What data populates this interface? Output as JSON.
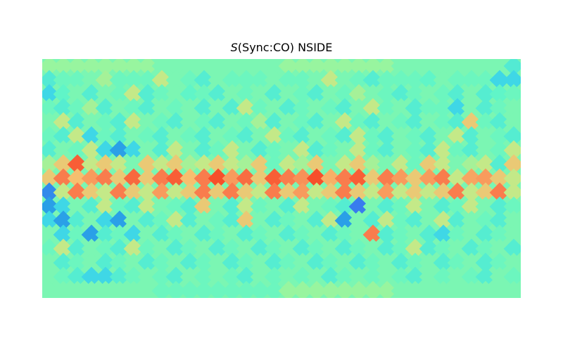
{
  "chart_data": {
    "type": "heatmap",
    "title": {
      "prefix": "S",
      "rest": "(Sync:CO) NSIDE"
    },
    "projection": "mollweide-like healpix map (rectangular/cartesian rendering)",
    "axes_visible": false,
    "colorbar": false,
    "colormap": "rainbow",
    "palette": [
      "#3d6ff0",
      "#27a7e6",
      "#3fd7e6",
      "#5ef5c9",
      "#8ff7a4",
      "#c6e887",
      "#f6bf6f",
      "#f97f4f",
      "#f7401f"
    ],
    "value_range": [
      0,
      1
    ],
    "grid": {
      "rows": 17,
      "cols": 34
    },
    "values": [
      [
        0.52,
        0.52,
        0.52,
        0.52,
        0.52,
        0.52,
        0.52,
        0.52,
        0.45,
        0.45,
        0.45,
        0.45,
        0.45,
        0.45,
        0.45,
        0.45,
        0.45,
        0.52,
        0.52,
        0.52,
        0.52,
        0.52,
        0.52,
        0.52,
        0.52,
        0.45,
        0.45,
        0.45,
        0.45,
        0.45,
        0.45,
        0.45,
        0.45,
        0.33
      ],
      [
        0.33,
        0.41,
        0.41,
        0.45,
        0.55,
        0.41,
        0.41,
        0.41,
        0.62,
        0.45,
        0.41,
        0.34,
        0.45,
        0.41,
        0.41,
        0.41,
        0.45,
        0.41,
        0.41,
        0.45,
        0.62,
        0.45,
        0.41,
        0.34,
        0.41,
        0.41,
        0.41,
        0.38,
        0.45,
        0.41,
        0.41,
        0.41,
        0.25,
        0.25
      ],
      [
        0.25,
        0.38,
        0.45,
        0.34,
        0.45,
        0.41,
        0.62,
        0.34,
        0.41,
        0.45,
        0.38,
        0.41,
        0.34,
        0.45,
        0.41,
        0.45,
        0.34,
        0.45,
        0.41,
        0.34,
        0.45,
        0.41,
        0.55,
        0.45,
        0.41,
        0.34,
        0.41,
        0.45,
        0.41,
        0.34,
        0.45,
        0.34,
        0.38,
        0.41
      ],
      [
        0.41,
        0.34,
        0.41,
        0.55,
        0.34,
        0.45,
        0.41,
        0.34,
        0.45,
        0.41,
        0.45,
        0.34,
        0.45,
        0.34,
        0.62,
        0.41,
        0.45,
        0.34,
        0.41,
        0.45,
        0.41,
        0.34,
        0.45,
        0.62,
        0.41,
        0.45,
        0.34,
        0.41,
        0.41,
        0.25,
        0.45,
        0.34,
        0.41,
        0.45
      ],
      [
        0.45,
        0.62,
        0.34,
        0.45,
        0.41,
        0.34,
        0.62,
        0.45,
        0.41,
        0.34,
        0.45,
        0.41,
        0.34,
        0.45,
        0.41,
        0.55,
        0.34,
        0.45,
        0.41,
        0.34,
        0.45,
        0.62,
        0.41,
        0.34,
        0.45,
        0.41,
        0.34,
        0.45,
        0.41,
        0.34,
        0.72,
        0.41,
        0.34,
        0.45
      ],
      [
        0.41,
        0.34,
        0.62,
        0.25,
        0.41,
        0.34,
        0.45,
        0.41,
        0.34,
        0.45,
        0.41,
        0.34,
        0.45,
        0.41,
        0.34,
        0.45,
        0.62,
        0.41,
        0.34,
        0.45,
        0.41,
        0.34,
        0.62,
        0.41,
        0.34,
        0.45,
        0.41,
        0.34,
        0.45,
        0.62,
        0.34,
        0.45,
        0.41,
        0.34
      ],
      [
        0.34,
        0.45,
        0.41,
        0.62,
        0.25,
        0.11,
        0.25,
        0.45,
        0.34,
        0.62,
        0.45,
        0.34,
        0.41,
        0.62,
        0.45,
        0.34,
        0.41,
        0.45,
        0.62,
        0.34,
        0.41,
        0.45,
        0.62,
        0.41,
        0.34,
        0.45,
        0.41,
        0.34,
        0.62,
        0.41,
        0.34,
        0.45,
        0.41,
        0.62
      ],
      [
        0.55,
        0.72,
        0.94,
        0.62,
        0.72,
        0.62,
        0.45,
        0.72,
        0.62,
        0.72,
        0.55,
        0.62,
        0.72,
        0.62,
        0.55,
        0.72,
        0.41,
        0.62,
        0.55,
        0.72,
        0.45,
        0.62,
        0.72,
        0.55,
        0.45,
        0.62,
        0.41,
        0.72,
        0.62,
        0.45,
        0.55,
        0.62,
        0.34,
        0.72
      ],
      [
        0.72,
        0.88,
        0.75,
        0.82,
        0.88,
        0.72,
        0.92,
        0.72,
        0.88,
        0.94,
        0.75,
        0.88,
        0.97,
        0.82,
        0.91,
        0.72,
        0.94,
        0.88,
        0.84,
        0.97,
        0.78,
        0.88,
        0.94,
        0.72,
        0.88,
        0.82,
        0.72,
        0.82,
        0.88,
        0.62,
        0.8,
        0.82,
        0.72,
        0.62
      ],
      [
        0.06,
        0.62,
        0.88,
        0.72,
        0.62,
        0.88,
        0.72,
        0.62,
        0.82,
        0.62,
        0.72,
        0.88,
        0.72,
        0.88,
        0.72,
        0.62,
        0.88,
        0.72,
        0.82,
        0.62,
        0.72,
        0.88,
        0.72,
        0.62,
        0.82,
        0.62,
        0.72,
        0.62,
        0.72,
        0.88,
        0.62,
        0.72,
        0.88,
        0.62
      ],
      [
        0.11,
        0.25,
        0.45,
        0.34,
        0.62,
        0.41,
        0.34,
        0.62,
        0.45,
        0.41,
        0.34,
        0.72,
        0.45,
        0.34,
        0.62,
        0.41,
        0.45,
        0.34,
        0.62,
        0.45,
        0.41,
        0.34,
        0.03,
        0.45,
        0.34,
        0.41,
        0.62,
        0.45,
        0.34,
        0.41,
        0.62,
        0.45,
        0.34,
        0.41
      ],
      [
        0.25,
        0.11,
        0.34,
        0.45,
        0.25,
        0.11,
        0.45,
        0.34,
        0.41,
        0.62,
        0.34,
        0.45,
        0.41,
        0.34,
        0.72,
        0.45,
        0.34,
        0.41,
        0.45,
        0.34,
        0.62,
        0.11,
        0.45,
        0.34,
        0.62,
        0.41,
        0.34,
        0.45,
        0.62,
        0.34,
        0.45,
        0.41,
        0.34,
        0.45
      ],
      [
        0.45,
        0.25,
        0.41,
        0.11,
        0.34,
        0.41,
        0.25,
        0.45,
        0.34,
        0.41,
        0.45,
        0.34,
        0.41,
        0.45,
        0.34,
        0.41,
        0.45,
        0.34,
        0.41,
        0.45,
        0.34,
        0.41,
        0.45,
        0.88,
        0.34,
        0.41,
        0.45,
        0.34,
        0.25,
        0.41,
        0.45,
        0.34,
        0.41,
        0.45
      ],
      [
        0.41,
        0.62,
        0.34,
        0.45,
        0.41,
        0.34,
        0.62,
        0.41,
        0.45,
        0.34,
        0.41,
        0.45,
        0.34,
        0.41,
        0.45,
        0.34,
        0.41,
        0.45,
        0.34,
        0.41,
        0.45,
        0.34,
        0.41,
        0.45,
        0.34,
        0.41,
        0.62,
        0.34,
        0.41,
        0.45,
        0.34,
        0.41,
        0.45,
        0.34
      ],
      [
        0.45,
        0.34,
        0.41,
        0.45,
        0.34,
        0.41,
        0.45,
        0.34,
        0.41,
        0.45,
        0.34,
        0.41,
        0.45,
        0.34,
        0.41,
        0.45,
        0.34,
        0.41,
        0.45,
        0.34,
        0.41,
        0.45,
        0.34,
        0.41,
        0.45,
        0.34,
        0.41,
        0.45,
        0.34,
        0.41,
        0.45,
        0.34,
        0.41,
        0.45
      ],
      [
        0.45,
        0.41,
        0.34,
        0.25,
        0.25,
        0.34,
        0.41,
        0.45,
        0.41,
        0.34,
        0.45,
        0.41,
        0.45,
        0.41,
        0.34,
        0.45,
        0.41,
        0.45,
        0.41,
        0.45,
        0.34,
        0.41,
        0.45,
        0.41,
        0.45,
        0.41,
        0.34,
        0.45,
        0.41,
        0.45,
        0.41,
        0.34,
        0.45,
        0.41
      ],
      [
        0.45,
        0.45,
        0.45,
        0.45,
        0.45,
        0.45,
        0.45,
        0.45,
        0.41,
        0.41,
        0.41,
        0.41,
        0.41,
        0.41,
        0.41,
        0.41,
        0.41,
        0.52,
        0.52,
        0.52,
        0.52,
        0.52,
        0.52,
        0.52,
        0.52,
        0.45,
        0.45,
        0.45,
        0.45,
        0.45,
        0.45,
        0.45,
        0.45,
        0.45
      ]
    ]
  }
}
